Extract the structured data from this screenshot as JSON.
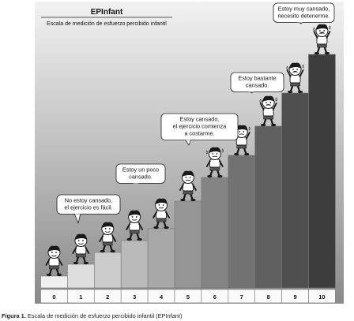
{
  "title": "EPInfant",
  "subtitle": "Escala de medición de esfuerzo percibido infantil",
  "scale_values": [
    "0",
    "1",
    "2",
    "3",
    "4",
    "5",
    "6",
    "7",
    "8",
    "9",
    "10"
  ],
  "bubbles": [
    {
      "lines": [
        "No estoy cansado,",
        "el ejercicio es fácil."
      ]
    },
    {
      "lines": [
        "Estoy un poco",
        "cansado."
      ]
    },
    {
      "lines": [
        "Estoy cansado,",
        "el ejercicio comienza",
        "a costarme."
      ]
    },
    {
      "lines": [
        "Estoy bastante",
        "cansado."
      ]
    },
    {
      "lines": [
        "Estoy muy cansado,",
        "necesito detenerme."
      ]
    }
  ],
  "caption": {
    "label": "Figura 1.",
    "text": "Escala de medición de esfuerzo percibido infantil (EPInfant)"
  },
  "colors": {
    "background_top": "#f2f2f2",
    "background_bottom": "#8a8a8a",
    "step_light": "#f0f0f0",
    "step_dark": "#3c3c3c"
  }
}
